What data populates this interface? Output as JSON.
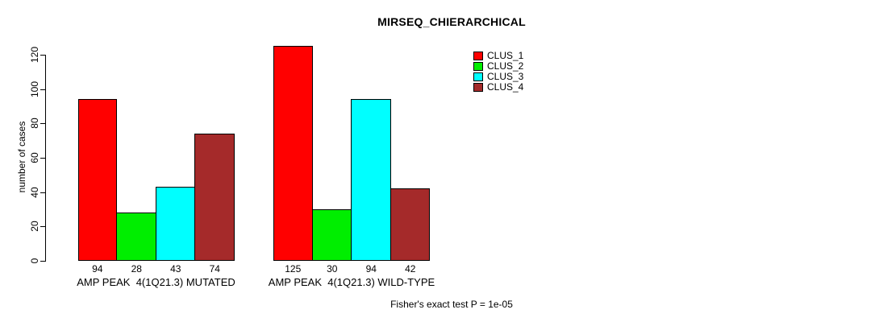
{
  "chart_data": {
    "type": "bar",
    "title": "MIRSEQ_CHIERARCHICAL",
    "ylabel": "number of cases",
    "xlabel": "",
    "ylim": [
      0,
      125
    ],
    "yticks": [
      0,
      20,
      40,
      60,
      80,
      100,
      120
    ],
    "grid": false,
    "legend_position": "top-right",
    "series": [
      {
        "name": "CLUS_1",
        "color": "#ff0000"
      },
      {
        "name": "CLUS_2",
        "color": "#00ee00"
      },
      {
        "name": "CLUS_3",
        "color": "#00ffff"
      },
      {
        "name": "CLUS_4",
        "color": "#a52a2a"
      }
    ],
    "groups": [
      {
        "label": "AMP PEAK  4(1Q21.3) MUTATED",
        "values": [
          94,
          28,
          43,
          74
        ]
      },
      {
        "label": "AMP PEAK  4(1Q21.3) WILD-TYPE",
        "values": [
          125,
          30,
          94,
          42
        ]
      }
    ],
    "annotation": "Fisher's exact test P = 1e-05"
  }
}
